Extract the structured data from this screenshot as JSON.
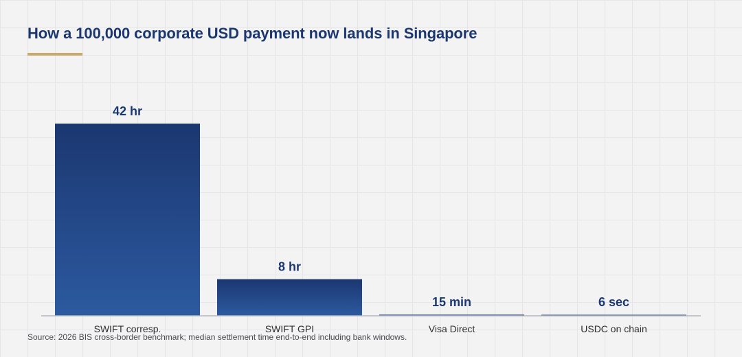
{
  "title": "How a 100,000 corporate USD payment now lands in Singapore",
  "source": "Source: 2026 BIS cross-border benchmark; median settlement time end-to-end including bank windows.",
  "colors": {
    "bar_top": "#1b3770",
    "bar_bottom": "#2c5aa0",
    "accent_rule": "#c9a96b",
    "axis": "#b4b6bc"
  },
  "chart_data": {
    "type": "bar",
    "categories": [
      "SWIFT corresp.",
      "SWIFT GPI",
      "Visa Direct",
      "USDC on chain"
    ],
    "values_hours": [
      42,
      8,
      0.25,
      0.0016667
    ],
    "value_labels": [
      "42 hr",
      "8 hr",
      "15 min",
      "6 sec"
    ],
    "title": "How a 100,000 corporate USD payment now lands in Singapore",
    "xlabel": "",
    "ylabel": "",
    "ylim": [
      0,
      42
    ],
    "grid": false,
    "legend": "none"
  }
}
